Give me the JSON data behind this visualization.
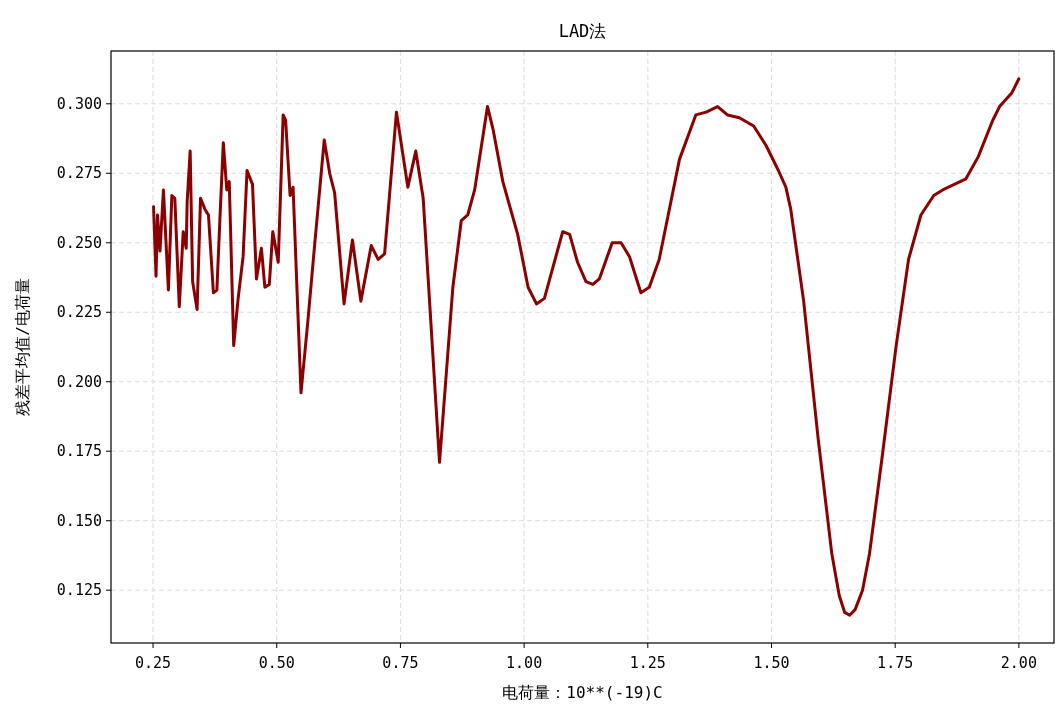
{
  "chart_data": {
    "type": "line",
    "title": "LAD法",
    "xlabel": "电荷量：10**(-19)C",
    "ylabel": "残差平均值/电荷量",
    "xlim": [
      0.165,
      2.071
    ],
    "ylim": [
      0.106,
      0.319
    ],
    "xticks": [
      {
        "value": 0.25,
        "label": "0.25"
      },
      {
        "value": 0.5,
        "label": "0.50"
      },
      {
        "value": 0.75,
        "label": "0.75"
      },
      {
        "value": 1.0,
        "label": "1.00"
      },
      {
        "value": 1.25,
        "label": "1.25"
      },
      {
        "value": 1.5,
        "label": "1.50"
      },
      {
        "value": 1.75,
        "label": "1.75"
      },
      {
        "value": 2.0,
        "label": "2.00"
      }
    ],
    "yticks": [
      {
        "value": 0.125,
        "label": "0.125"
      },
      {
        "value": 0.15,
        "label": "0.150"
      },
      {
        "value": 0.175,
        "label": "0.175"
      },
      {
        "value": 0.2,
        "label": "0.200"
      },
      {
        "value": 0.225,
        "label": "0.225"
      },
      {
        "value": 0.25,
        "label": "0.250"
      },
      {
        "value": 0.275,
        "label": "0.275"
      },
      {
        "value": 0.3,
        "label": "0.300"
      }
    ],
    "grid": true,
    "x": [
      0.251,
      0.256,
      0.259,
      0.264,
      0.271,
      0.281,
      0.288,
      0.294,
      0.303,
      0.311,
      0.317,
      0.319,
      0.325,
      0.33,
      0.339,
      0.346,
      0.355,
      0.362,
      0.372,
      0.379,
      0.385,
      0.392,
      0.399,
      0.404,
      0.413,
      0.422,
      0.432,
      0.44,
      0.451,
      0.459,
      0.469,
      0.476,
      0.485,
      0.492,
      0.503,
      0.513,
      0.518,
      0.527,
      0.533,
      0.549,
      0.563,
      0.577,
      0.596,
      0.607,
      0.617,
      0.636,
      0.653,
      0.67,
      0.691,
      0.705,
      0.718,
      0.742,
      0.765,
      0.781,
      0.796,
      0.829,
      0.856,
      0.873,
      0.886,
      0.9,
      0.926,
      0.937,
      0.957,
      0.987,
      1.008,
      1.025,
      1.041,
      1.078,
      1.092,
      1.108,
      1.125,
      1.139,
      1.152,
      1.178,
      1.196,
      1.213,
      1.236,
      1.253,
      1.273,
      1.314,
      1.347,
      1.368,
      1.391,
      1.411,
      1.435,
      1.464,
      1.489,
      1.514,
      1.529,
      1.539,
      1.565,
      1.594,
      1.622,
      1.637,
      1.648,
      1.658,
      1.669,
      1.684,
      1.698,
      1.723,
      1.752,
      1.777,
      1.802,
      1.828,
      1.846,
      1.893,
      1.918,
      1.947,
      1.961,
      1.986,
      2.0
    ],
    "series": [
      {
        "color": "#8b0000",
        "values": [
          0.263,
          0.238,
          0.26,
          0.247,
          0.269,
          0.233,
          0.267,
          0.266,
          0.227,
          0.254,
          0.248,
          0.265,
          0.283,
          0.236,
          0.226,
          0.266,
          0.262,
          0.26,
          0.232,
          0.233,
          0.258,
          0.286,
          0.269,
          0.272,
          0.213,
          0.23,
          0.245,
          0.276,
          0.271,
          0.237,
          0.248,
          0.234,
          0.235,
          0.254,
          0.243,
          0.296,
          0.294,
          0.267,
          0.27,
          0.196,
          0.222,
          0.25,
          0.287,
          0.275,
          0.268,
          0.228,
          0.251,
          0.229,
          0.249,
          0.244,
          0.246,
          0.297,
          0.27,
          0.283,
          0.266,
          0.171,
          0.234,
          0.258,
          0.26,
          0.269,
          0.299,
          0.291,
          0.272,
          0.253,
          0.234,
          0.228,
          0.23,
          0.254,
          0.253,
          0.243,
          0.236,
          0.235,
          0.237,
          0.25,
          0.25,
          0.245,
          0.232,
          0.234,
          0.244,
          0.28,
          0.296,
          0.297,
          0.299,
          0.296,
          0.295,
          0.292,
          0.285,
          0.276,
          0.27,
          0.262,
          0.229,
          0.18,
          0.138,
          0.123,
          0.117,
          0.116,
          0.118,
          0.125,
          0.138,
          0.172,
          0.213,
          0.244,
          0.26,
          0.267,
          0.269,
          0.273,
          0.281,
          0.294,
          0.299,
          0.304,
          0.309
        ]
      }
    ]
  }
}
